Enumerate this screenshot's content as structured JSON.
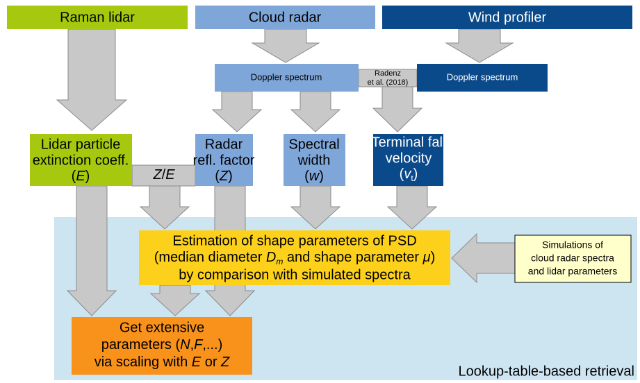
{
  "sources": [
    "Raman lidar",
    "Cloud radar",
    "Wind profiler"
  ],
  "doppler": [
    "Doppler spectrum",
    "Doppler spectrum"
  ],
  "citation": [
    "Radenz",
    "et al. (2018)"
  ],
  "products": [
    {
      "lines": [
        [
          "Lidar particle"
        ],
        [
          "extinction coeff."
        ],
        [
          "(",
          "E",
          ")"
        ]
      ]
    },
    {
      "lines": [
        [
          "Radar"
        ],
        [
          "refl. factor"
        ],
        [
          "(",
          "Z",
          ")"
        ]
      ]
    },
    {
      "lines": [
        [
          "Spectral"
        ],
        [
          "width"
        ],
        [
          "(",
          "w",
          ")"
        ]
      ]
    },
    {
      "lines": [
        [
          "Terminal fall"
        ],
        [
          "velocity"
        ],
        [
          "(",
          "v",
          "t",
          ")"
        ]
      ]
    }
  ],
  "ratio": [
    "Z",
    "/",
    "E"
  ],
  "estimation": [
    [
      "Estimation of shape parameters of PSD"
    ],
    [
      "(median diameter ",
      "D",
      "m",
      " and shape parameter ",
      "μ",
      ")"
    ],
    [
      "by comparison with simulated spectra"
    ]
  ],
  "simulations": [
    "Simulations of",
    "cloud radar spectra",
    "and lidar parameters"
  ],
  "extensive": [
    [
      "Get extensive"
    ],
    [
      "parameters (",
      "N",
      ",",
      "F",
      ",...)"
    ],
    [
      "via scaling with ",
      "E",
      " or ",
      "Z"
    ]
  ],
  "region_label": "Lookup-table-based retrieval"
}
